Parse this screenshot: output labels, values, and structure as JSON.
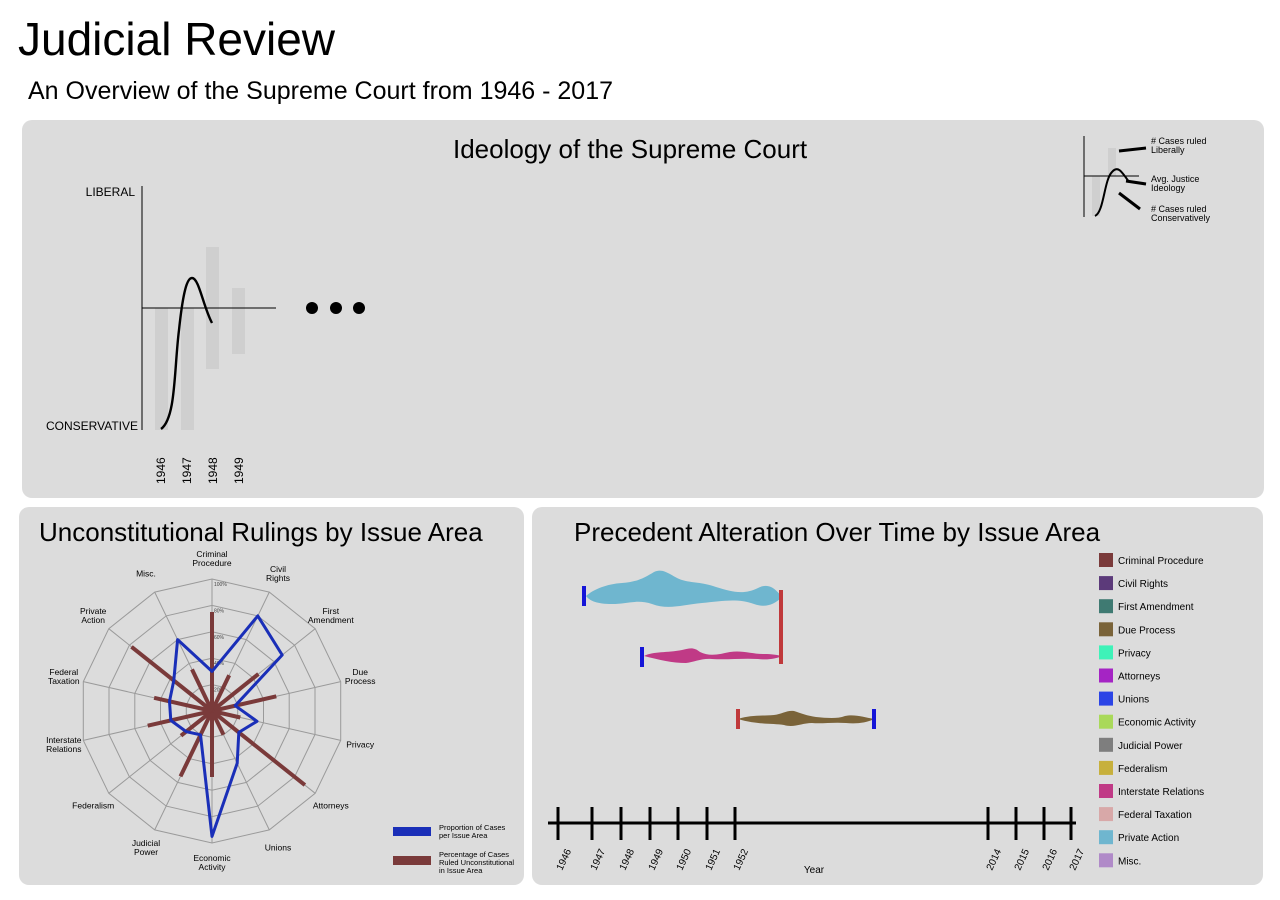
{
  "header": {
    "title": "Judicial Review",
    "subtitle": "An Overview of the Supreme Court from 1946 - 2017"
  },
  "ideology": {
    "title": "Ideology of the Supreme Court",
    "liberal_label": "LIBERAL",
    "conservative_label": "CONSERVATIVE",
    "years": [
      "1946",
      "1947",
      "1948",
      "1949"
    ],
    "legend": {
      "liberal_1": "# Cases ruled",
      "liberal_2": "Liberally",
      "ideology_1": "Avg. Justice",
      "ideology_2": "Ideology",
      "conservative_1": "# Cases ruled",
      "conservative_2": "Conservatively"
    }
  },
  "radar": {
    "title": "Unconstitutional Rulings by Issue Area",
    "axes": [
      [
        "Criminal",
        "Procedure"
      ],
      [
        "Civil",
        "Rights"
      ],
      [
        "First",
        "Amendment"
      ],
      [
        "Due",
        "Process"
      ],
      [
        "Privacy"
      ],
      [
        "Attorneys"
      ],
      [
        "Unions"
      ],
      [
        "Economic",
        "Activity"
      ],
      [
        "Judicial",
        "Power"
      ],
      [
        "Federalism"
      ],
      [
        "Interstate",
        "Relations"
      ],
      [
        "Federal",
        "Taxation"
      ],
      [
        "Private",
        "Action"
      ],
      [
        "Misc."
      ]
    ],
    "ring_labels": [
      "100%",
      "80%",
      "60%",
      "40%",
      "20%"
    ],
    "proportion_values": [
      0.3,
      0.8,
      0.68,
      0.18,
      0.35,
      0.26,
      0.44,
      0.95,
      0.2,
      0.25,
      0.32,
      0.33,
      0.37,
      0.6
    ],
    "unconstitutional_values": [
      0.75,
      0.3,
      0.45,
      0.5,
      0.22,
      0.9,
      0.2,
      0.5,
      0.55,
      0.3,
      0.5,
      0.45,
      0.78,
      0.35
    ],
    "proportion_color": "#1a2fb8",
    "unconstitutional_color": "#7a3a3a",
    "legend": {
      "proportion_1": "Proportion of Cases",
      "proportion_2": "per Issue Area",
      "uncon_1": "Percentage of Cases",
      "uncon_2": "Ruled Unconstitutional",
      "uncon_3": "in Issue Area"
    }
  },
  "precedent": {
    "title": "Precedent Alteration Over Time by Issue Area",
    "axis_label": "Year",
    "years_left": [
      "1946",
      "1947",
      "1948",
      "1949",
      "1950",
      "1951",
      "1952"
    ],
    "years_right": [
      "2014",
      "2015",
      "2016",
      "2017"
    ],
    "streams": [
      {
        "area": "Private Action",
        "color": "#6fb6cf",
        "start": "1947",
        "end": "1952",
        "start_marker": "#1515d8",
        "end_marker": "#c0393b"
      },
      {
        "area": "Interstate Relations",
        "color": "#c03a86",
        "start": "1949",
        "end": "1952",
        "start_marker": "#1515d8",
        "end_marker": "#c0393b"
      },
      {
        "area": "Due Process",
        "color": "#7a6339",
        "start": "1952",
        "end": "2014",
        "start_marker": "#c0393b",
        "end_marker": "#1515d8"
      }
    ],
    "legend": [
      {
        "label": "Criminal Procedure",
        "color": "#7a3a3a"
      },
      {
        "label": "Civil Rights",
        "color": "#5c3a7a"
      },
      {
        "label": "First Amendment",
        "color": "#3f7a72"
      },
      {
        "label": "Due Process",
        "color": "#7a6339"
      },
      {
        "label": "Privacy",
        "color": "#3ef2b8"
      },
      {
        "label": "Attorneys",
        "color": "#a524c4"
      },
      {
        "label": "Unions",
        "color": "#2b44e6"
      },
      {
        "label": "Economic Activity",
        "color": "#a9d95a"
      },
      {
        "label": "Judicial Power",
        "color": "#7e7e7e"
      },
      {
        "label": "Federalism",
        "color": "#c7b03c"
      },
      {
        "label": "Interstate Relations",
        "color": "#c03a86"
      },
      {
        "label": "Federal Taxation",
        "color": "#d8a8a8"
      },
      {
        "label": "Private Action",
        "color": "#6fb6cf"
      },
      {
        "label": "Misc.",
        "color": "#b08ac8"
      }
    ]
  }
}
